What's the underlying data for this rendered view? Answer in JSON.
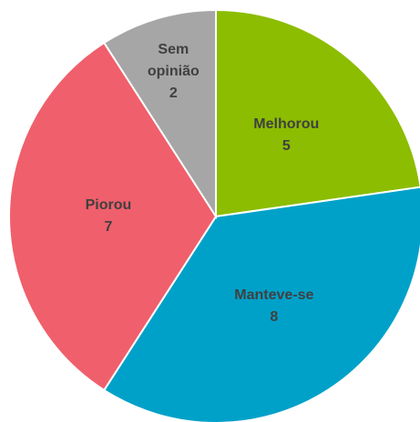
{
  "chart_data": {
    "type": "pie",
    "categories": [
      "Melhorou",
      "Manteve-se",
      "Piorou",
      "Sem opinião"
    ],
    "values": [
      5,
      8,
      7,
      2
    ],
    "colors": [
      "#8cbd00",
      "#00a1c9",
      "#f05f6c",
      "#a6a6a6"
    ]
  }
}
